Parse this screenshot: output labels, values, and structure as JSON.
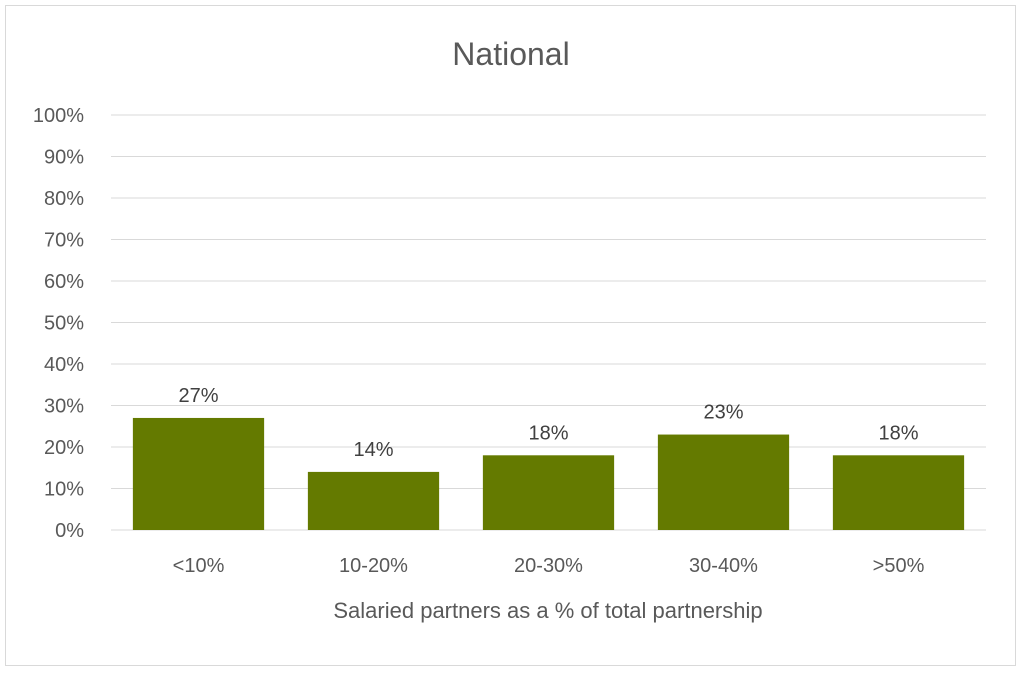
{
  "chart_data": {
    "type": "bar",
    "title": "National",
    "xlabel": "Salaried partners as a % of total partnership",
    "ylabel": "",
    "categories": [
      "<10%",
      "10-20%",
      "20-30%",
      "30-40%",
      ">50%"
    ],
    "values": [
      27,
      14,
      18,
      23,
      18
    ],
    "data_labels": [
      "27%",
      "14%",
      "18%",
      "23%",
      "18%"
    ],
    "ylim": [
      0,
      100
    ],
    "yticks": [
      0,
      10,
      20,
      30,
      40,
      50,
      60,
      70,
      80,
      90,
      100
    ],
    "ytick_labels": [
      "0%",
      "10%",
      "20%",
      "30%",
      "40%",
      "50%",
      "60%",
      "70%",
      "80%",
      "90%",
      "100%"
    ],
    "grid": true,
    "legend": "none",
    "bar_color": "#647a00"
  }
}
